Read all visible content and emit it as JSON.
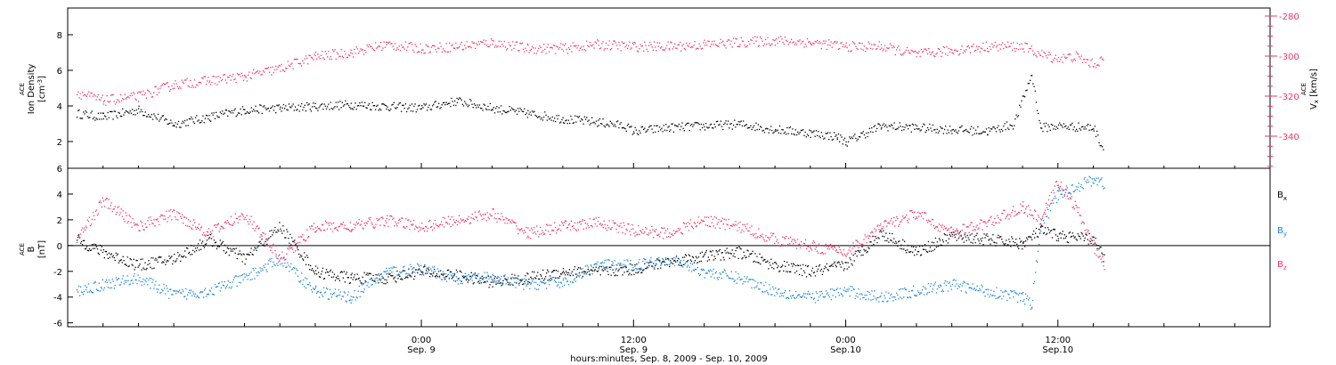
{
  "colors": {
    "black": "#000000",
    "pink": "#e8386a",
    "blue": "#1b86d8",
    "frame": "#000000"
  },
  "footer": {
    "xlabel": "hours:minutes, Sep.  8, 2009 - Sep. 10, 2009"
  },
  "chart_data": [
    {
      "type": "scatter",
      "panel": "top",
      "left_label_lines": [
        "ACE",
        "Ion Density",
        "[cm-3]"
      ],
      "right_label": "ACE Vx [km/s]",
      "left_ylim": [
        0.5,
        9.5
      ],
      "left_yticks": [
        2,
        4,
        6,
        8
      ],
      "right_ylim": [
        -356,
        -276
      ],
      "right_yticks": [
        -280,
        -300,
        -320,
        -340
      ],
      "series": [
        {
          "name": "Ion Density",
          "color": "black",
          "axis": "left",
          "x": [
            -19.5,
            -18,
            -16,
            -14,
            -12,
            -10,
            -8,
            -6,
            -4,
            -2,
            0,
            2,
            4,
            6,
            8,
            10,
            11.5,
            12,
            14,
            16,
            18,
            20,
            22,
            23.5,
            24,
            26,
            28,
            30,
            32,
            33.5,
            34.5,
            35,
            36,
            38,
            38.6
          ],
          "y": [
            3.6,
            3.4,
            3.8,
            3.0,
            3.4,
            3.8,
            3.9,
            4.0,
            4.1,
            4.0,
            3.9,
            4.3,
            3.9,
            3.6,
            3.3,
            3.1,
            2.9,
            2.6,
            2.8,
            2.9,
            3.0,
            2.7,
            2.5,
            2.3,
            2.0,
            2.9,
            2.8,
            2.7,
            2.6,
            3.0,
            5.8,
            2.8,
            2.9,
            2.8,
            1.5
          ]
        },
        {
          "name": "Vx",
          "color": "pink",
          "axis": "right",
          "x": [
            -19.5,
            -18,
            -16,
            -14,
            -12,
            -10,
            -8,
            -6,
            -4,
            -2,
            0,
            2,
            4,
            6,
            8,
            10,
            12,
            14,
            16,
            18,
            20,
            22,
            24,
            26,
            28,
            30,
            32,
            34,
            35,
            36,
            37,
            38,
            38.6
          ],
          "y": [
            -318,
            -322,
            -320,
            -314,
            -312,
            -310,
            -306,
            -300,
            -298,
            -294,
            -296,
            -295,
            -293,
            -296,
            -296,
            -294,
            -295,
            -295,
            -294,
            -293,
            -292,
            -293,
            -295,
            -295,
            -299,
            -297,
            -295,
            -295,
            -299,
            -301,
            -300,
            -304,
            -301
          ]
        }
      ]
    },
    {
      "type": "scatter",
      "panel": "bottom",
      "left_label_lines": [
        "ACE",
        "B",
        "[nT]"
      ],
      "ylim": [
        -6.3,
        6.0
      ],
      "yticks": [
        -6,
        -4,
        -2,
        0,
        2,
        4,
        6
      ],
      "zero_line": true,
      "legend": [
        "Bx",
        "By",
        "Bz"
      ],
      "series": [
        {
          "name": "Bx",
          "color": "black",
          "x": [
            -19.5,
            -18,
            -16,
            -14,
            -12,
            -10,
            -8,
            -6,
            -4,
            -2,
            0,
            2,
            4,
            6,
            8,
            10,
            12,
            14,
            16,
            18,
            20,
            22,
            24,
            26,
            28,
            30,
            32,
            34,
            35,
            36,
            38,
            38.6
          ],
          "y": [
            0.5,
            -0.5,
            -1.5,
            -1.0,
            0.5,
            -1.0,
            1.5,
            -2.0,
            -2.5,
            -2.5,
            -2.0,
            -2.3,
            -2.8,
            -2.5,
            -2.0,
            -2.0,
            -1.8,
            -1.2,
            -0.8,
            -0.5,
            -1.5,
            -2.0,
            -1.5,
            1.0,
            -0.5,
            0.8,
            0.5,
            0.2,
            1.2,
            0.8,
            0.5,
            -1.0
          ]
        },
        {
          "name": "By",
          "color": "blue",
          "x": [
            -19.5,
            -18,
            -16,
            -14,
            -12,
            -10,
            -8,
            -6,
            -4,
            -2,
            0,
            2,
            4,
            6,
            8,
            10,
            12,
            14,
            16,
            18,
            20,
            22,
            24,
            26,
            28,
            30,
            32,
            34,
            34.5,
            35,
            36,
            38,
            38.6
          ],
          "y": [
            -3.5,
            -3.0,
            -2.5,
            -3.8,
            -3.5,
            -2.5,
            -1.0,
            -3.5,
            -4.0,
            -2.0,
            -1.8,
            -2.5,
            -2.5,
            -3.0,
            -2.8,
            -1.5,
            -1.5,
            -1.0,
            -2.0,
            -2.5,
            -3.5,
            -4.0,
            -3.5,
            -4.0,
            -3.5,
            -3.0,
            -3.5,
            -4.0,
            -4.5,
            1.5,
            4.0,
            5.2,
            4.8
          ]
        },
        {
          "name": "Bz",
          "color": "pink",
          "x": [
            -19.5,
            -18,
            -16,
            -14,
            -12,
            -10,
            -8,
            -6,
            -4,
            -2,
            0,
            2,
            4,
            6,
            8,
            10,
            12,
            14,
            16,
            18,
            20,
            22,
            24,
            26,
            28,
            30,
            32,
            34,
            35,
            36,
            37,
            38,
            38.6
          ],
          "y": [
            0.5,
            3.5,
            1.5,
            2.5,
            1.0,
            2.5,
            -1.0,
            1.5,
            1.5,
            2.0,
            1.5,
            2.0,
            2.5,
            1.0,
            1.5,
            1.8,
            1.2,
            1.0,
            2.0,
            1.5,
            0.5,
            0.0,
            -0.5,
            1.5,
            2.5,
            1.0,
            1.8,
            3.0,
            2.0,
            5.0,
            3.0,
            0.0,
            -1.5
          ]
        }
      ]
    }
  ],
  "x_axis": {
    "xlim": [
      -20,
      48
    ],
    "ticks": [
      {
        "x": 0,
        "line1": "0:00",
        "line2": "Sep. 9"
      },
      {
        "x": 12,
        "line1": "12:00",
        "line2": "Sep. 9"
      },
      {
        "x": 24,
        "line1": "0:00",
        "line2": "Sep.10"
      },
      {
        "x": 36,
        "line1": "12:00",
        "line2": "Sep.10"
      }
    ]
  }
}
